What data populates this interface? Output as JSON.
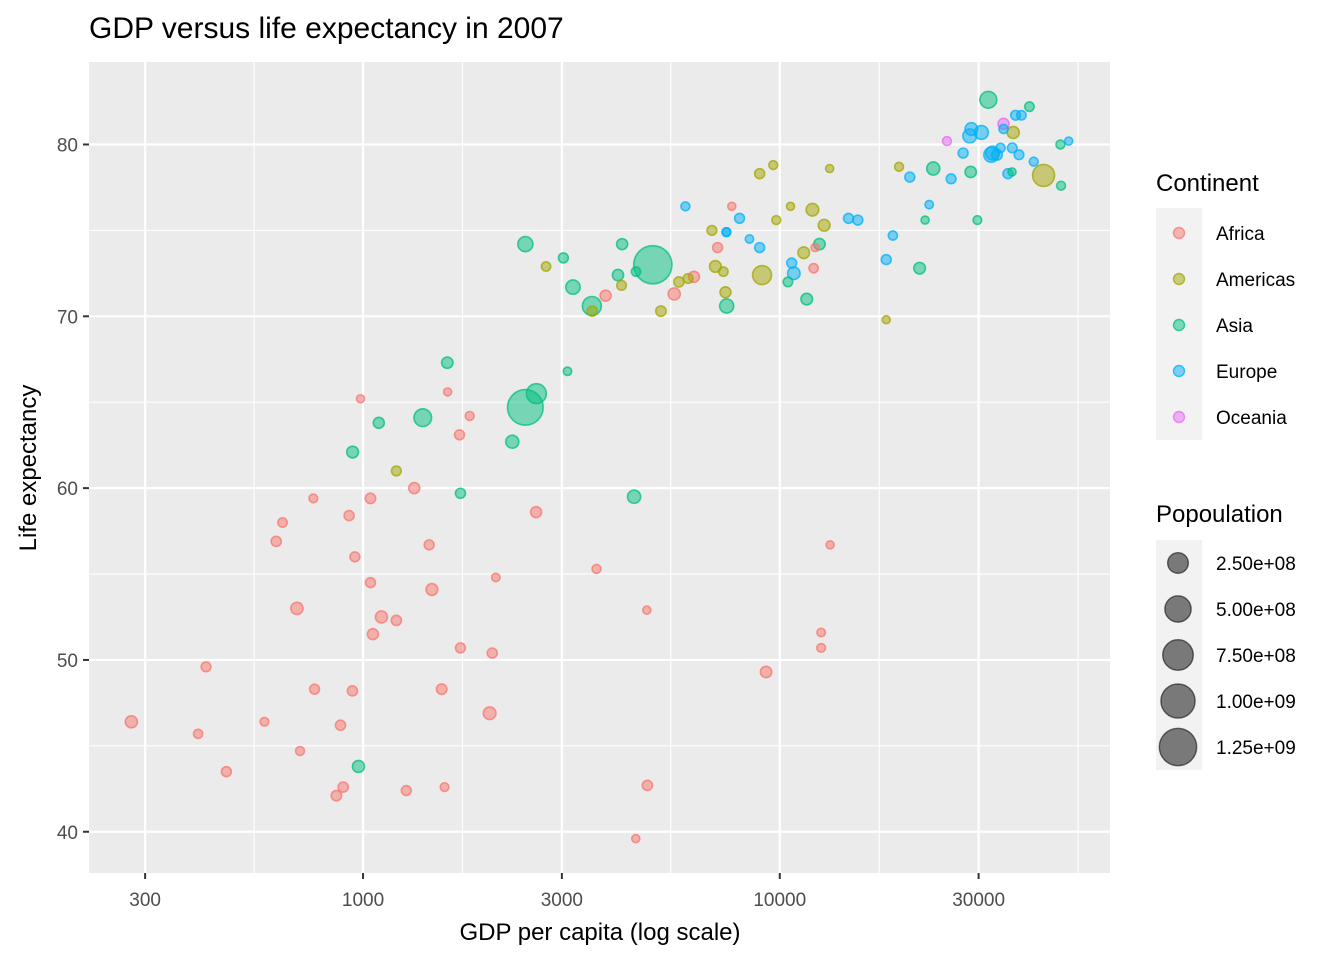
{
  "chart_data": {
    "type": "scatter",
    "title": "GDP versus life expectancy in 2007",
    "xlabel": "GDP per capita (log scale)",
    "ylabel": "Life expectancy",
    "x_scale": "log10",
    "xlim": [
      220,
      62000
    ],
    "ylim": [
      37.6,
      84.8
    ],
    "x_ticks": [
      300,
      1000,
      3000,
      10000,
      30000
    ],
    "x_tick_labels": [
      "300",
      "1000",
      "3000",
      "10000",
      "30000"
    ],
    "y_ticks": [
      40,
      50,
      60,
      70,
      80
    ],
    "y_tick_labels": [
      "40",
      "50",
      "60",
      "70",
      "80"
    ],
    "grid": true,
    "legend_placement": "right",
    "legends": {
      "color": {
        "title": "Continent",
        "entries": [
          {
            "label": "Africa",
            "color": "#F8766D"
          },
          {
            "label": "Americas",
            "color": "#A3A500"
          },
          {
            "label": "Asia",
            "color": "#00BF7D"
          },
          {
            "label": "Europe",
            "color": "#00B0F6"
          },
          {
            "label": "Oceania",
            "color": "#E76BF3"
          }
        ]
      },
      "size": {
        "title": "Popoulation",
        "entries": [
          {
            "label": "2.50e+08",
            "value": 250000000
          },
          {
            "label": "5.00e+08",
            "value": 500000000
          },
          {
            "label": "7.50e+08",
            "value": 750000000
          },
          {
            "label": "1.00e+09",
            "value": 1000000000
          },
          {
            "label": "1.25e+09",
            "value": 1250000000
          }
        ]
      }
    },
    "point_alpha": 0.5,
    "series": [
      {
        "name": "Africa",
        "points": [
          [
            278,
            46.4,
            33000000
          ],
          [
            420,
            49.6,
            9000000
          ],
          [
            402,
            45.7,
            5000000
          ],
          [
            470,
            43.5,
            10000000
          ],
          [
            580,
            46.4,
            3000000
          ],
          [
            619,
            56.9,
            12000000
          ],
          [
            641,
            58.0,
            6000000
          ],
          [
            694,
            53.0,
            35000000
          ],
          [
            706,
            44.7,
            4000000
          ],
          [
            760,
            59.4,
            3000000
          ],
          [
            765,
            48.3,
            10000000
          ],
          [
            863,
            42.1,
            14000000
          ],
          [
            883,
            46.2,
            12000000
          ],
          [
            896,
            42.6,
            12000000
          ],
          [
            926,
            58.4,
            11000000
          ],
          [
            943,
            48.2,
            12000000
          ],
          [
            956,
            56.0,
            10000000
          ],
          [
            986,
            65.2,
            1000000
          ],
          [
            1042,
            59.4,
            14000000
          ],
          [
            1042,
            54.5,
            10000000
          ],
          [
            1056,
            51.5,
            19000000
          ],
          [
            1107,
            52.5,
            32000000
          ],
          [
            1202,
            52.3,
            12000000
          ],
          [
            1270,
            42.4,
            10000000
          ],
          [
            1327,
            60.0,
            20000000
          ],
          [
            1441,
            56.7,
            10000000
          ],
          [
            1463,
            54.1,
            29000000
          ],
          [
            1544,
            48.3,
            15000000
          ],
          [
            1569,
            42.6,
            3000000
          ],
          [
            1596,
            65.6,
            1000000
          ],
          [
            1704,
            63.1,
            10000000
          ],
          [
            1713,
            50.7,
            10000000
          ],
          [
            1803,
            64.2,
            4000000
          ],
          [
            2042,
            50.4,
            11000000
          ],
          [
            2013,
            46.9,
            40000000
          ],
          [
            2083,
            54.8,
            2000000
          ],
          [
            2602,
            58.6,
            20000000
          ],
          [
            3633,
            55.3,
            4000000
          ],
          [
            3820,
            71.2,
            20000000
          ],
          [
            4513,
            39.6,
            1000000
          ],
          [
            4797,
            52.9,
            1000000
          ],
          [
            4811,
            42.7,
            12000000
          ],
          [
            5581,
            71.3,
            33000000
          ],
          [
            6223,
            72.3,
            20000000
          ],
          [
            7092,
            74.0,
            10000000
          ],
          [
            7671,
            76.4,
            1000000
          ],
          [
            9270,
            49.3,
            24000000
          ],
          [
            12057,
            72.8,
            6000000
          ],
          [
            12154,
            74.0,
            1000000
          ],
          [
            12570,
            51.6,
            2000000
          ],
          [
            12569,
            50.7,
            3000000
          ],
          [
            13206,
            56.7,
            1000000
          ]
        ]
      },
      {
        "name": "Americas",
        "points": [
          [
            1202,
            61.0,
            9000000
          ],
          [
            2749,
            72.9,
            6000000
          ],
          [
            3548,
            70.3,
            12000000
          ],
          [
            4172,
            71.8,
            8000000
          ],
          [
            5186,
            70.3,
            14000000
          ],
          [
            5728,
            72.0,
            12000000
          ],
          [
            6025,
            72.2,
            9000000
          ],
          [
            6873,
            75.0,
            9000000
          ],
          [
            7006,
            72.9,
            28000000
          ],
          [
            7321,
            72.6,
            7000000
          ],
          [
            7408,
            71.4,
            19000000
          ],
          [
            8948,
            78.3,
            11000000
          ],
          [
            9066,
            72.4,
            190000000
          ],
          [
            9645,
            78.8,
            4000000
          ],
          [
            9809,
            75.6,
            4000000
          ],
          [
            10611,
            76.4,
            1000000
          ],
          [
            11415,
            73.7,
            27000000
          ],
          [
            11978,
            76.2,
            40000000
          ],
          [
            12779,
            75.3,
            28000000
          ],
          [
            13172,
            78.6,
            1000000
          ],
          [
            18009,
            69.8,
            1000000
          ],
          [
            19329,
            78.7,
            4000000
          ],
          [
            36319,
            80.7,
            33000000
          ],
          [
            42952,
            78.2,
            301000000
          ]
        ]
      },
      {
        "name": "Asia",
        "points": [
          [
            944,
            62.1,
            29000000
          ],
          [
            1091,
            63.8,
            20000000
          ],
          [
            1391,
            64.1,
            150000000
          ],
          [
            1593,
            67.3,
            24000000
          ],
          [
            1713,
            59.7,
            11000000
          ],
          [
            975,
            43.8,
            32000000
          ],
          [
            2281,
            62.7,
            47000000
          ],
          [
            2452,
            74.2,
            85000000
          ],
          [
            2606,
            65.5,
            223000000
          ],
          [
            2452,
            64.7,
            1110000000
          ],
          [
            3025,
            73.4,
            10000000
          ],
          [
            3095,
            66.8,
            2000000
          ],
          [
            3190,
            71.7,
            70000000
          ],
          [
            3541,
            70.6,
            190000000
          ],
          [
            4090,
            72.4,
            22000000
          ],
          [
            4185,
            74.2,
            20000000
          ],
          [
            4471,
            59.5,
            49000000
          ],
          [
            4519,
            72.6,
            6000000
          ],
          [
            4959,
            73.0,
            1319000000
          ],
          [
            7458,
            70.6,
            65000000
          ],
          [
            10461,
            72.0,
            7000000
          ],
          [
            11606,
            71.0,
            27000000
          ],
          [
            12452,
            74.2,
            24000000
          ],
          [
            21655,
            72.8,
            27000000
          ],
          [
            22316,
            75.6,
            1000000
          ],
          [
            23348,
            78.6,
            48000000
          ],
          [
            28718,
            78.4,
            23000000
          ],
          [
            29796,
            75.6,
            3000000
          ],
          [
            31657,
            82.6,
            127000000
          ],
          [
            36076,
            78.4,
            1000000
          ],
          [
            39725,
            82.2,
            7000000
          ],
          [
            47143,
            80.0,
            4000000
          ],
          [
            47307,
            77.6,
            4000000
          ]
        ]
      },
      {
        "name": "Europe",
        "points": [
          [
            5937,
            76.4,
            4000000
          ],
          [
            7446,
            74.9,
            4000000
          ],
          [
            8458,
            74.5,
            2000000
          ],
          [
            8948,
            74.0,
            10000000
          ],
          [
            8008,
            75.7,
            10000000
          ],
          [
            10681,
            73.1,
            10000000
          ],
          [
            10808,
            72.5,
            38000000
          ],
          [
            7446,
            74.9,
            3000000
          ],
          [
            14619,
            75.7,
            10000000
          ],
          [
            15390,
            75.6,
            10000000
          ],
          [
            18678,
            74.7,
            5000000
          ],
          [
            18009,
            73.3,
            10000000
          ],
          [
            20510,
            78.1,
            10000000
          ],
          [
            22833,
            76.5,
            2000000
          ],
          [
            25768,
            78.0,
            9000000
          ],
          [
            27538,
            79.5,
            10000000
          ],
          [
            28569,
            80.5,
            60000000
          ],
          [
            28821,
            80.9,
            40000000
          ],
          [
            30470,
            80.7,
            61000000
          ],
          [
            32170,
            79.4,
            82000000
          ],
          [
            33207,
            79.4,
            16000000
          ],
          [
            33860,
            79.8,
            5000000
          ],
          [
            34435,
            80.9,
            5000000
          ],
          [
            35278,
            78.3,
            10000000
          ],
          [
            36126,
            79.8,
            8000000
          ],
          [
            37506,
            79.4,
            8000000
          ],
          [
            36798,
            81.7,
            9000000
          ],
          [
            40676,
            79.0,
            4000000
          ],
          [
            49357,
            80.2,
            1000000
          ],
          [
            32400,
            79.5,
            58000000
          ],
          [
            38000,
            81.7,
            7000000
          ]
        ]
      },
      {
        "name": "Oceania",
        "points": [
          [
            25185,
            80.2,
            4000000
          ],
          [
            34435,
            81.2,
            20000000
          ]
        ]
      }
    ]
  }
}
